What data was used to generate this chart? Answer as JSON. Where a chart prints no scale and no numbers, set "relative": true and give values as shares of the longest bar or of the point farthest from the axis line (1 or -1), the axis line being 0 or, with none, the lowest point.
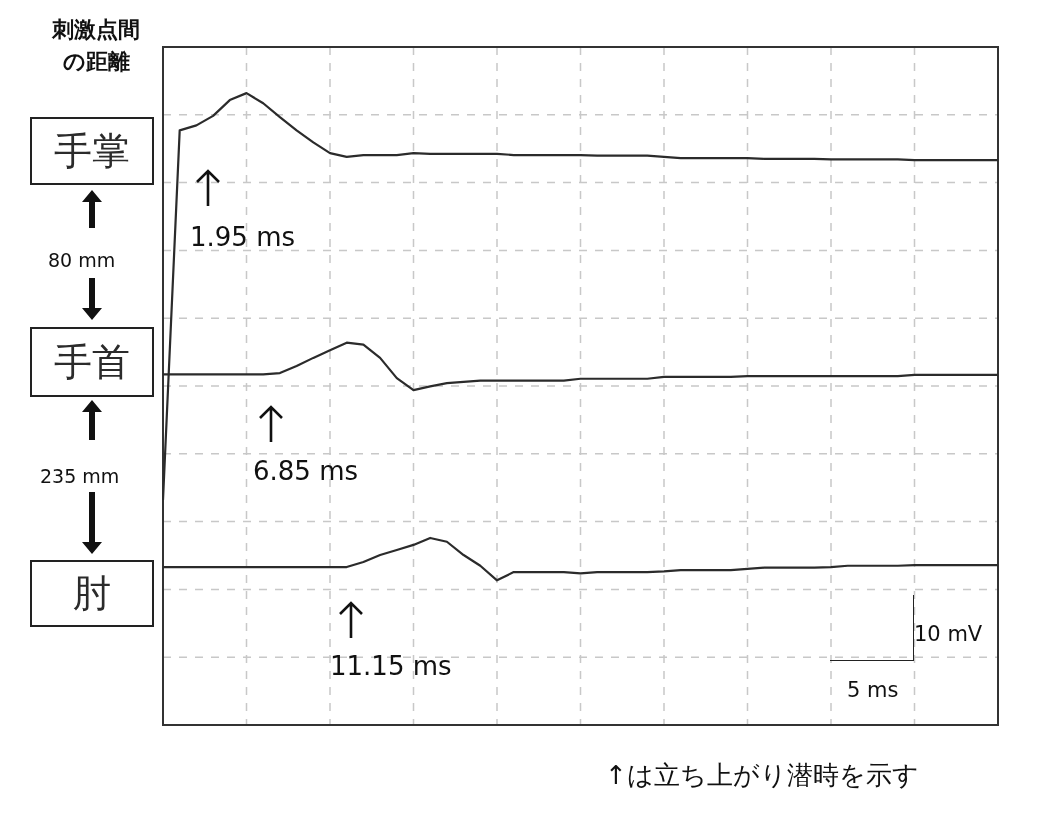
{
  "chart_data": {
    "type": "line",
    "relative": true,
    "grid": true,
    "legend_title": "刺激点間の距離",
    "categories": [
      null,
      null,
      null,
      null,
      null,
      null,
      null,
      null,
      null,
      null,
      null,
      null,
      null,
      null,
      null,
      null,
      null,
      null,
      null,
      null,
      null,
      null,
      null,
      null,
      null,
      null,
      null,
      null,
      null,
      null,
      null,
      null,
      null,
      null,
      null,
      null,
      null,
      null,
      null,
      null,
      null,
      null,
      null,
      null,
      null,
      null,
      null,
      null,
      null,
      null,
      null
    ],
    "series": [
      {
        "name": "手掌",
        "color": "#2b2b2b",
        "values": [
          0.356,
          0.941,
          0.949,
          0.964,
          0.989,
          1,
          0.984,
          0.962,
          0.941,
          0.922,
          0.905,
          0.899,
          0.902,
          0.902,
          0.902,
          0.905,
          0.904,
          0.904,
          0.904,
          0.904,
          0.904,
          0.902,
          0.902,
          0.902,
          0.902,
          0.902,
          0.901,
          0.901,
          0.901,
          0.901,
          0.899,
          0.897,
          0.897,
          0.897,
          0.897,
          0.897,
          0.896,
          0.896,
          0.896,
          0.896,
          0.895,
          0.895,
          0.895,
          0.895,
          0.895,
          0.894,
          0.894,
          0.894,
          0.894,
          0.894,
          0.894
        ]
      },
      {
        "name": "手首",
        "color": "#2b2b2b",
        "values": [
          0.555,
          0.555,
          0.555,
          0.555,
          0.555,
          0.555,
          0.555,
          0.557,
          0.568,
          0.581,
          0.593,
          0.605,
          0.602,
          0.581,
          0.549,
          0.53,
          0.536,
          0.541,
          0.543,
          0.545,
          0.545,
          0.545,
          0.545,
          0.545,
          0.545,
          0.548,
          0.548,
          0.548,
          0.548,
          0.548,
          0.551,
          0.551,
          0.551,
          0.551,
          0.551,
          0.552,
          0.552,
          0.552,
          0.552,
          0.552,
          0.552,
          0.552,
          0.552,
          0.552,
          0.552,
          0.554,
          0.554,
          0.554,
          0.554,
          0.554,
          0.554
        ]
      },
      {
        "name": "肘",
        "color": "#2b2b2b",
        "values": [
          0.25,
          0.25,
          0.25,
          0.25,
          0.25,
          0.25,
          0.25,
          0.25,
          0.25,
          0.25,
          0.25,
          0.25,
          0.258,
          0.269,
          0.277,
          0.285,
          0.296,
          0.29,
          0.269,
          0.252,
          0.229,
          0.242,
          0.242,
          0.242,
          0.242,
          0.24,
          0.242,
          0.242,
          0.242,
          0.242,
          0.243,
          0.245,
          0.245,
          0.245,
          0.245,
          0.247,
          0.249,
          0.249,
          0.249,
          0.249,
          0.25,
          0.252,
          0.252,
          0.252,
          0.252,
          0.253,
          0.253,
          0.253,
          0.253,
          0.253,
          0.253
        ]
      }
    ],
    "annotations": [
      "1.95 ms",
      "6.85 ms",
      "11.15 ms",
      "80 mm",
      "235 mm",
      "10 mV",
      "5 ms",
      "↑は立ち上がり潜時を示す"
    ]
  }
}
